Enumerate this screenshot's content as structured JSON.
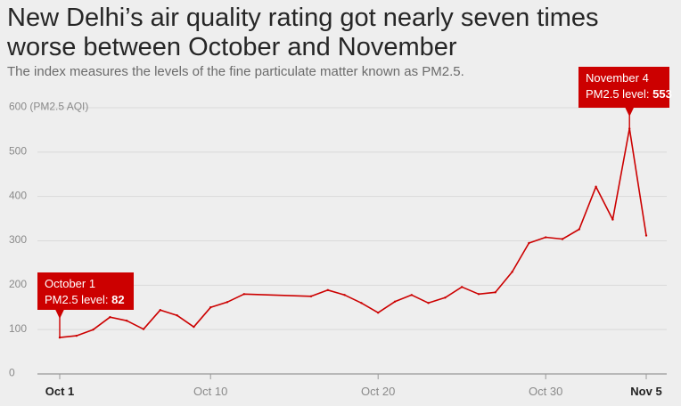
{
  "title": "New Delhi’s air quality rating got nearly seven times worse between October and November",
  "subtitle": "The index measures the levels of the fine particulate matter known as PM2.5.",
  "colors": {
    "background": "#eeeeee",
    "line": "#cc0000",
    "callout": "#cc0000",
    "grid": "#d9d9d9",
    "axis": "#999999"
  },
  "chart_data": {
    "type": "line",
    "title": "New Delhi’s air quality rating got nearly seven times worse between October and November",
    "subtitle": "The index measures the levels of the fine particulate matter known as PM2.5.",
    "ylabel_unit": "(PM2.5 AQI)",
    "ylim": [
      0,
      600
    ],
    "yticks": [
      0,
      100,
      200,
      300,
      400,
      500,
      600
    ],
    "ytick_labels": [
      "0",
      "100",
      "200",
      "300",
      "400",
      "500",
      "600 (PM2.5 AQI)"
    ],
    "xticks": [
      {
        "x": "Oct 1",
        "day": 1,
        "bold": true
      },
      {
        "x": "Oct 10",
        "day": 10,
        "bold": false
      },
      {
        "x": "Oct 20",
        "day": 20,
        "bold": false
      },
      {
        "x": "Oct 30",
        "day": 30,
        "bold": false
      },
      {
        "x": "Nov 5",
        "day": 36,
        "bold": true
      }
    ],
    "grid": true,
    "series": [
      {
        "points": [
          {
            "day": 1,
            "value": 82
          },
          {
            "day": 2,
            "value": 86
          },
          {
            "day": 3,
            "value": 100
          },
          {
            "day": 4,
            "value": 128
          },
          {
            "day": 5,
            "value": 120
          },
          {
            "day": 6,
            "value": 101
          },
          {
            "day": 7,
            "value": 144
          },
          {
            "day": 8,
            "value": 132
          },
          {
            "day": 9,
            "value": 106
          },
          {
            "day": 10,
            "value": 150
          },
          {
            "day": 11,
            "value": 162
          },
          {
            "day": 12,
            "value": 180
          },
          {
            "day": 16,
            "value": 175
          },
          {
            "day": 17,
            "value": 189
          },
          {
            "day": 18,
            "value": 178
          },
          {
            "day": 19,
            "value": 160
          },
          {
            "day": 20,
            "value": 138
          },
          {
            "day": 21,
            "value": 163
          },
          {
            "day": 22,
            "value": 178
          },
          {
            "day": 23,
            "value": 160
          },
          {
            "day": 24,
            "value": 172
          },
          {
            "day": 25,
            "value": 196
          },
          {
            "day": 26,
            "value": 180
          },
          {
            "day": 27,
            "value": 184
          },
          {
            "day": 28,
            "value": 230
          },
          {
            "day": 29,
            "value": 295
          },
          {
            "day": 30,
            "value": 308
          },
          {
            "day": 31,
            "value": 304
          },
          {
            "day": 32,
            "value": 326
          },
          {
            "day": 33,
            "value": 422
          },
          {
            "day": 34,
            "value": 348
          },
          {
            "day": 35,
            "value": 553
          },
          {
            "day": 36,
            "value": 312
          }
        ]
      }
    ],
    "annotations": [
      {
        "day": 1,
        "value": 82,
        "line1": "October 1",
        "line2": "PM2.5 level: ",
        "value_text": "82"
      },
      {
        "day": 35,
        "value": 553,
        "line1": "November 4",
        "line2": "PM2.5 level: ",
        "value_text": "553"
      }
    ]
  }
}
